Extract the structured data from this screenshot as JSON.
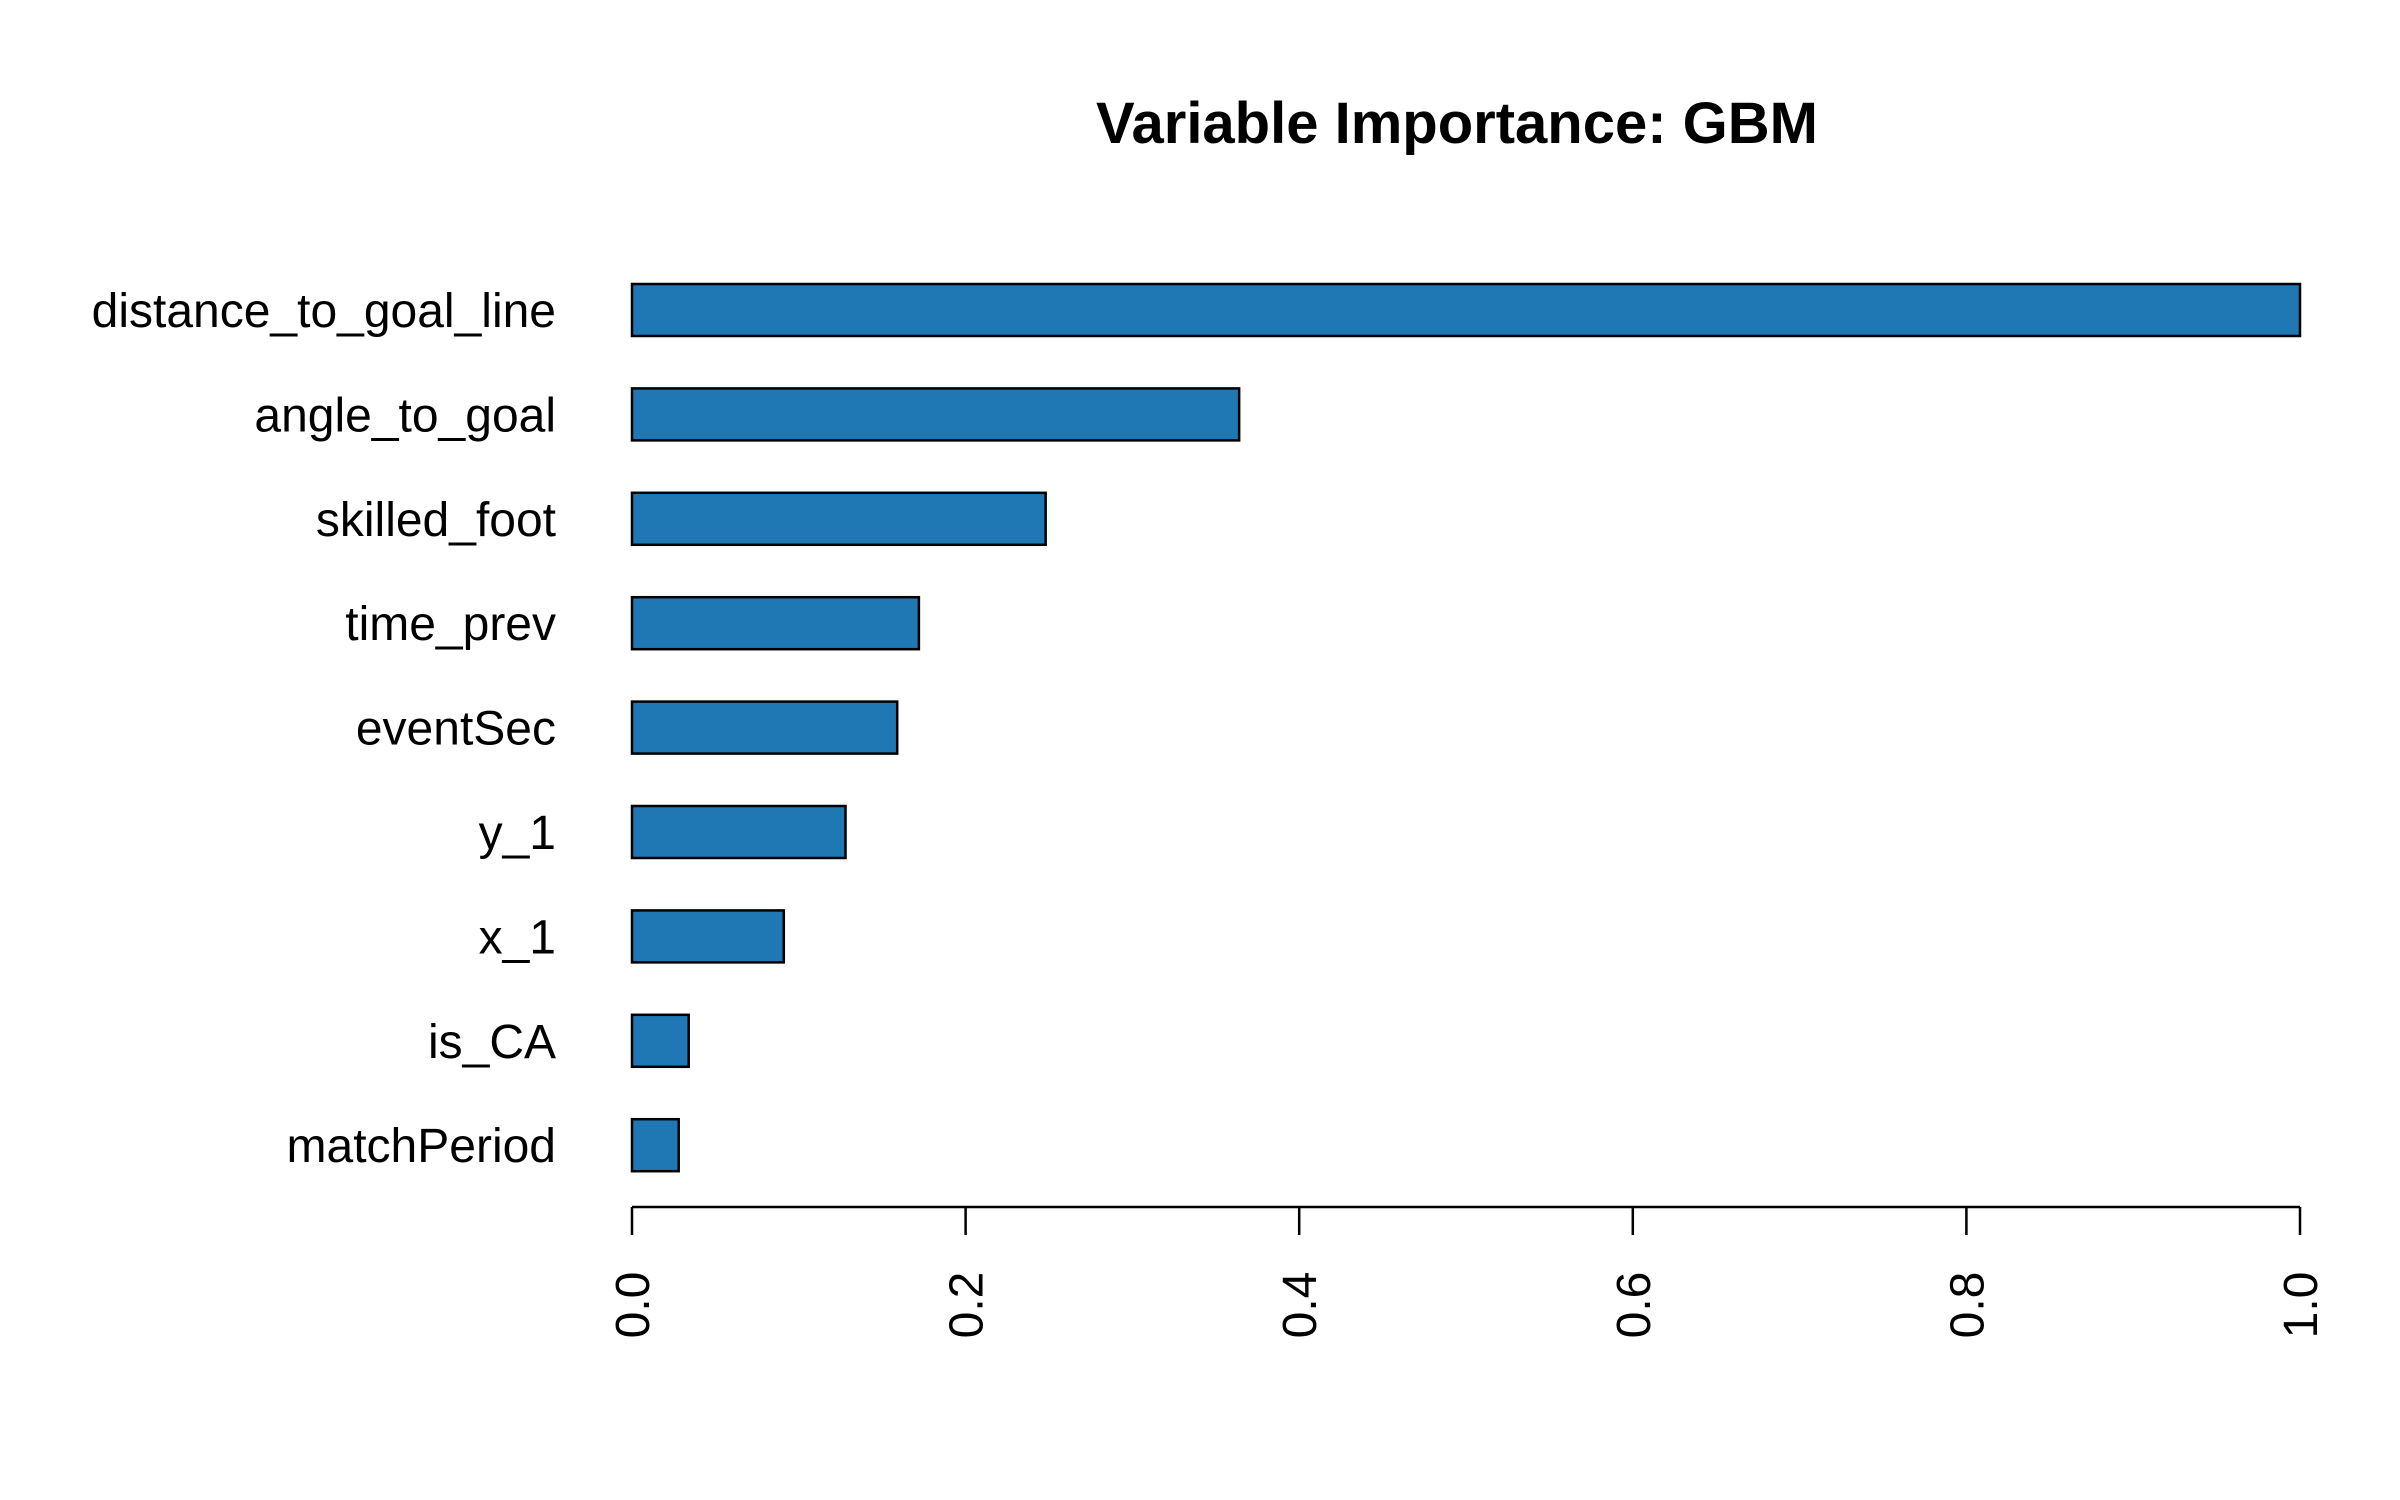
{
  "chart_data": {
    "type": "bar",
    "orientation": "horizontal",
    "title": "Variable Importance: GBM",
    "xlabel": "",
    "ylabel": "",
    "categories": [
      "distance_to_goal_line",
      "angle_to_goal",
      "skilled_foot",
      "time_prev",
      "eventSec",
      "y_1",
      "x_1",
      "is_CA",
      "matchPeriod"
    ],
    "values": [
      1.0,
      0.364,
      0.248,
      0.172,
      0.159,
      0.128,
      0.091,
      0.034,
      0.028
    ],
    "xlim": [
      0,
      1
    ],
    "xticks": [
      0.0,
      0.2,
      0.4,
      0.6,
      0.8,
      1.0
    ],
    "xtick_labels": [
      "0.0",
      "0.2",
      "0.4",
      "0.6",
      "0.8",
      "1.0"
    ],
    "bar_color": "#1f77b4",
    "grid": false,
    "legend": "none"
  }
}
